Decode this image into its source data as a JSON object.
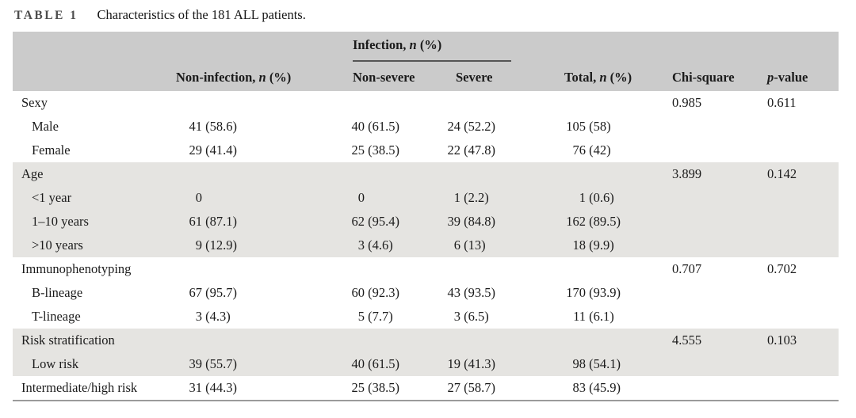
{
  "page": {
    "title_label": "TABLE 1",
    "title_caption": "Characteristics of the 181 ALL patients."
  },
  "colors": {
    "header_bg": "#cbcbcb",
    "band_bg": "#e5e4e1",
    "bottom_rule": "#9b9b9b",
    "spanner_rule": "#555555",
    "text": "#1b1b1b",
    "title_label": "#4d4d4d"
  },
  "table": {
    "headers": {
      "infection_spanner": [
        {
          "t": "Infection, "
        },
        {
          "t": "n",
          "i": true
        },
        {
          "t": " (%)"
        }
      ],
      "noninfection": [
        {
          "t": "Non-infection, "
        },
        {
          "t": "n",
          "i": true
        },
        {
          "t": " (%)"
        }
      ],
      "nonsevere": [
        {
          "t": "Non-severe"
        }
      ],
      "severe": [
        {
          "t": "Severe"
        }
      ],
      "total": [
        {
          "t": "Total, "
        },
        {
          "t": "n",
          "i": true
        },
        {
          "t": " (%)"
        }
      ],
      "chisquare": [
        {
          "t": "Chi-square"
        }
      ],
      "pvalue": [
        {
          "t": "p",
          "i": true
        },
        {
          "t": "-value"
        }
      ]
    },
    "rows": [
      {
        "label": "Sexy",
        "indent": false,
        "shaded": false,
        "noninfection": "",
        "nonsevere": "",
        "severe": "",
        "total": "",
        "chisquare": "0.985",
        "pvalue": "0.611"
      },
      {
        "label": "Male",
        "indent": true,
        "shaded": false,
        "noninfection": "41 (58.6)",
        "nonsevere": "40 (61.5)",
        "severe": "24 (52.2)",
        "total": "105 (58)",
        "chisquare": "",
        "pvalue": ""
      },
      {
        "label": "Female",
        "indent": true,
        "shaded": false,
        "noninfection": "29 (41.4)",
        "nonsevere": "25 (38.5)",
        "severe": "22 (47.8)",
        "total": "76 (42)",
        "chisquare": "",
        "pvalue": ""
      },
      {
        "label": "Age",
        "indent": false,
        "shaded": true,
        "noninfection": "",
        "nonsevere": "",
        "severe": "",
        "total": "",
        "chisquare": "3.899",
        "pvalue": "0.142"
      },
      {
        "label": "<1 year",
        "indent": true,
        "shaded": true,
        "noninfection": "0",
        "nonsevere": "0",
        "severe": "1 (2.2)",
        "total": "1 (0.6)",
        "chisquare": "",
        "pvalue": ""
      },
      {
        "label": "1–10 years",
        "indent": true,
        "shaded": true,
        "noninfection": "61 (87.1)",
        "nonsevere": "62 (95.4)",
        "severe": "39 (84.8)",
        "total": "162 (89.5)",
        "chisquare": "",
        "pvalue": ""
      },
      {
        "label": ">10 years",
        "indent": true,
        "shaded": true,
        "noninfection": "9 (12.9)",
        "nonsevere": "3 (4.6)",
        "severe": "6 (13)",
        "total": "18 (9.9)",
        "chisquare": "",
        "pvalue": ""
      },
      {
        "label": "Immunophenotyping",
        "indent": false,
        "shaded": false,
        "noninfection": "",
        "nonsevere": "",
        "severe": "",
        "total": "",
        "chisquare": "0.707",
        "pvalue": "0.702"
      },
      {
        "label": "B-lineage",
        "indent": true,
        "shaded": false,
        "noninfection": "67 (95.7)",
        "nonsevere": "60 (92.3)",
        "severe": "43 (93.5)",
        "total": "170 (93.9)",
        "chisquare": "",
        "pvalue": ""
      },
      {
        "label": "T-lineage",
        "indent": true,
        "shaded": false,
        "noninfection": "3 (4.3)",
        "nonsevere": "5 (7.7)",
        "severe": "3 (6.5)",
        "total": "11 (6.1)",
        "chisquare": "",
        "pvalue": ""
      },
      {
        "label": "Risk stratification",
        "indent": false,
        "shaded": true,
        "noninfection": "",
        "nonsevere": "",
        "severe": "",
        "total": "",
        "chisquare": "4.555",
        "pvalue": "0.103"
      },
      {
        "label": "Low risk",
        "indent": true,
        "shaded": true,
        "noninfection": "39 (55.7)",
        "nonsevere": "40 (61.5)",
        "severe": "19 (41.3)",
        "total": "98 (54.1)",
        "chisquare": "",
        "pvalue": ""
      },
      {
        "label": "Intermediate/high risk",
        "indent": false,
        "shaded": false,
        "noninfection": "31 (44.3)",
        "nonsevere": "25 (38.5)",
        "severe": "27 (58.7)",
        "total": "83 (45.9)",
        "chisquare": "",
        "pvalue": ""
      }
    ]
  }
}
